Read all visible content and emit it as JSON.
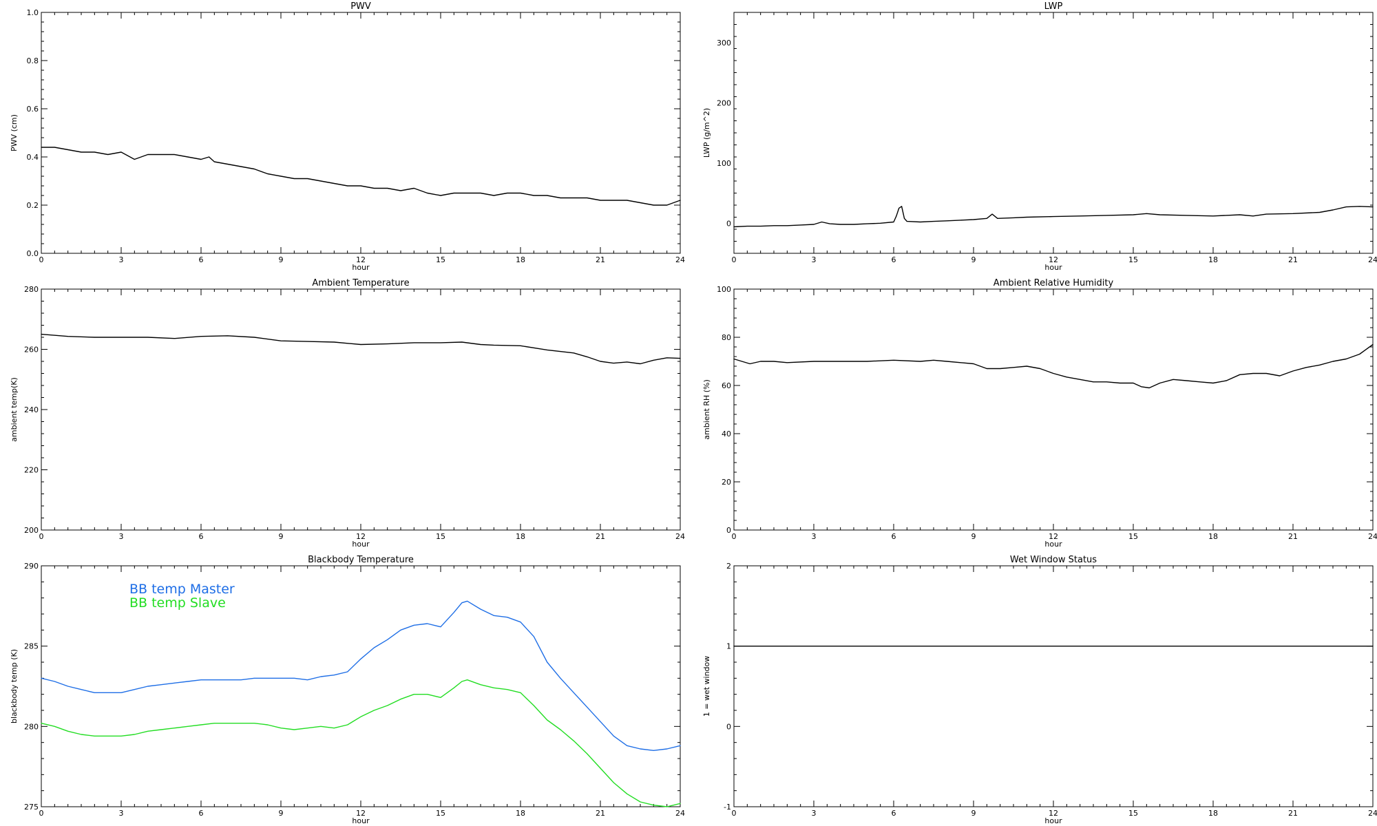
{
  "chart_data": [
    {
      "id": "pwv",
      "type": "line",
      "title": "PWV",
      "xlabel": "hour",
      "ylabel": "PWV (cm)",
      "xlim": [
        0,
        24
      ],
      "ylim": [
        0.0,
        1.0
      ],
      "xticks": [
        0,
        3,
        6,
        9,
        12,
        15,
        18,
        21,
        24
      ],
      "yticks": [
        0.0,
        0.2,
        0.4,
        0.6,
        0.8,
        1.0
      ],
      "ytick_labels": [
        "0.0",
        "0.2",
        "0.4",
        "0.6",
        "0.8",
        "1.0"
      ],
      "series": [
        {
          "color": "#000000",
          "x": [
            0,
            0.5,
            1,
            1.5,
            2,
            2.5,
            3,
            3.5,
            4,
            4.5,
            5,
            5.5,
            6,
            6.3,
            6.5,
            7,
            7.5,
            8,
            8.5,
            9,
            9.5,
            10,
            10.5,
            11,
            11.5,
            12,
            12.5,
            13,
            13.5,
            14,
            14.5,
            15,
            15.5,
            16,
            16.5,
            17,
            17.5,
            18,
            18.5,
            19,
            19.5,
            20,
            20.5,
            21,
            21.5,
            22,
            22.5,
            23,
            23.5,
            24
          ],
          "y": [
            0.44,
            0.44,
            0.43,
            0.42,
            0.42,
            0.41,
            0.42,
            0.39,
            0.41,
            0.41,
            0.41,
            0.4,
            0.39,
            0.4,
            0.38,
            0.37,
            0.36,
            0.35,
            0.33,
            0.32,
            0.31,
            0.31,
            0.3,
            0.29,
            0.28,
            0.28,
            0.27,
            0.27,
            0.26,
            0.27,
            0.25,
            0.24,
            0.25,
            0.25,
            0.25,
            0.24,
            0.25,
            0.25,
            0.24,
            0.24,
            0.23,
            0.23,
            0.23,
            0.22,
            0.22,
            0.22,
            0.21,
            0.2,
            0.2,
            0.22
          ]
        }
      ]
    },
    {
      "id": "lwp",
      "type": "line",
      "title": "LWP",
      "xlabel": "hour",
      "ylabel": "LWP (g/m^2)",
      "xlim": [
        0,
        24
      ],
      "ylim": [
        -50,
        350
      ],
      "xticks": [
        0,
        3,
        6,
        9,
        12,
        15,
        18,
        21,
        24
      ],
      "yticks": [
        0,
        100,
        200,
        300
      ],
      "ytick_labels": [
        "0",
        "100",
        "200",
        "300"
      ],
      "series": [
        {
          "color": "#000000",
          "x": [
            0,
            0.5,
            1,
            1.5,
            2,
            2.5,
            3,
            3.3,
            3.6,
            4,
            4.5,
            5,
            5.5,
            6,
            6.1,
            6.2,
            6.3,
            6.4,
            6.5,
            7,
            7.5,
            8,
            8.5,
            9,
            9.5,
            9.7,
            9.9,
            10.5,
            11,
            12,
            13,
            14,
            15,
            15.5,
            16,
            17,
            18,
            19,
            19.5,
            20,
            21,
            22,
            22.5,
            23,
            23.5,
            24
          ],
          "y": [
            -6,
            -5,
            -5,
            -4,
            -4,
            -3,
            -2,
            2,
            -1,
            -2,
            -2,
            -1,
            0,
            2,
            12,
            25,
            28,
            8,
            3,
            2,
            3,
            4,
            5,
            6,
            8,
            15,
            8,
            9,
            10,
            11,
            12,
            13,
            14,
            16,
            14,
            13,
            12,
            14,
            12,
            15,
            16,
            18,
            22,
            27,
            28,
            27
          ]
        }
      ]
    },
    {
      "id": "ambient-temp",
      "type": "line",
      "title": "Ambient Temperature",
      "xlabel": "hour",
      "ylabel": "ambient temp(K)",
      "xlim": [
        0,
        24
      ],
      "ylim": [
        200,
        280
      ],
      "xticks": [
        0,
        3,
        6,
        9,
        12,
        15,
        18,
        21,
        24
      ],
      "yticks": [
        200,
        220,
        240,
        260,
        280
      ],
      "ytick_labels": [
        "200",
        "220",
        "240",
        "260",
        "280"
      ],
      "series": [
        {
          "color": "#000000",
          "x": [
            0,
            1,
            2,
            3,
            4,
            5,
            6,
            7,
            8,
            9,
            10,
            11,
            12,
            13,
            14,
            15,
            15.8,
            16.5,
            17,
            18,
            19,
            20,
            20.5,
            21,
            21.5,
            22,
            22.5,
            23,
            23.5,
            24
          ],
          "y": [
            265,
            264.3,
            264.0,
            264.0,
            264.0,
            263.6,
            264.3,
            264.5,
            264.0,
            262.8,
            262.6,
            262.4,
            261.6,
            261.8,
            262.2,
            262.2,
            262.4,
            261.6,
            261.4,
            261.2,
            259.8,
            258.8,
            257.5,
            256.0,
            255.4,
            255.8,
            255.2,
            256.4,
            257.2,
            257.0
          ]
        }
      ]
    },
    {
      "id": "ambient-rh",
      "type": "line",
      "title": "Ambient Relative Humidity",
      "xlabel": "hour",
      "ylabel": "ambient RH (%)",
      "xlim": [
        0,
        24
      ],
      "ylim": [
        0,
        100
      ],
      "xticks": [
        0,
        3,
        6,
        9,
        12,
        15,
        18,
        21,
        24
      ],
      "yticks": [
        0,
        20,
        40,
        60,
        80,
        100
      ],
      "ytick_labels": [
        "0",
        "20",
        "40",
        "60",
        "80",
        "100"
      ],
      "series": [
        {
          "color": "#000000",
          "x": [
            0,
            0.3,
            0.6,
            1,
            1.5,
            2,
            3,
            4,
            5,
            6,
            7,
            7.5,
            8,
            9,
            9.5,
            10,
            10.5,
            11,
            11.5,
            12,
            12.5,
            13,
            13.5,
            14,
            14.5,
            15,
            15.3,
            15.6,
            16,
            16.5,
            17,
            17.5,
            18,
            18.5,
            19,
            19.5,
            20,
            20.5,
            21,
            21.5,
            22,
            22.5,
            23,
            23.5,
            24
          ],
          "y": [
            71,
            70,
            69,
            70,
            70,
            69.5,
            70,
            70,
            70,
            70.5,
            70,
            70.5,
            70,
            69,
            67,
            67,
            67.5,
            68,
            67,
            65,
            63.5,
            62.5,
            61.5,
            61.5,
            61,
            61,
            59.5,
            59,
            61,
            62.5,
            62,
            61.5,
            61,
            62,
            64.5,
            65,
            65,
            64,
            66,
            67.5,
            68.5,
            70,
            71,
            73,
            77
          ]
        }
      ]
    },
    {
      "id": "blackbody-temp",
      "type": "line",
      "title": "Blackbody Temperature",
      "xlabel": "hour",
      "ylabel": "blackbody temp (K)",
      "xlim": [
        0,
        24
      ],
      "ylim": [
        275,
        290
      ],
      "xticks": [
        0,
        3,
        6,
        9,
        12,
        15,
        18,
        21,
        24
      ],
      "yticks": [
        275,
        280,
        285,
        290
      ],
      "ytick_labels": [
        "275",
        "280",
        "285",
        "290"
      ],
      "legend_position": "top-left",
      "series": [
        {
          "name": "BB temp Master",
          "color": "#1e6ee6",
          "x": [
            0,
            0.5,
            1,
            1.5,
            2,
            2.5,
            3,
            3.5,
            4,
            4.5,
            5,
            5.5,
            6,
            6.5,
            7,
            7.5,
            8,
            8.5,
            9,
            9.5,
            10,
            10.5,
            11,
            11.5,
            12,
            12.5,
            13,
            13.5,
            14,
            14.5,
            15,
            15.5,
            15.8,
            16,
            16.5,
            17,
            17.5,
            18,
            18.5,
            19,
            19.5,
            20,
            20.5,
            21,
            21.5,
            22,
            22.5,
            23,
            23.5,
            24
          ],
          "y": [
            283.0,
            282.8,
            282.5,
            282.3,
            282.1,
            282.1,
            282.1,
            282.3,
            282.5,
            282.6,
            282.7,
            282.8,
            282.9,
            282.9,
            282.9,
            282.9,
            283.0,
            283.0,
            283.0,
            283.0,
            282.9,
            283.1,
            283.2,
            283.4,
            284.2,
            284.9,
            285.4,
            286.0,
            286.3,
            286.4,
            286.2,
            287.1,
            287.7,
            287.8,
            287.3,
            286.9,
            286.8,
            286.5,
            285.6,
            284.0,
            283.0,
            282.1,
            281.2,
            280.3,
            279.4,
            278.8,
            278.6,
            278.5,
            278.6,
            278.8
          ]
        },
        {
          "name": "BB temp Slave",
          "color": "#22dd22",
          "x": [
            0,
            0.5,
            1,
            1.5,
            2,
            2.5,
            3,
            3.5,
            4,
            4.5,
            5,
            5.5,
            6,
            6.5,
            7,
            7.5,
            8,
            8.5,
            9,
            9.5,
            10,
            10.5,
            11,
            11.5,
            12,
            12.5,
            13,
            13.5,
            14,
            14.5,
            15,
            15.5,
            15.8,
            16,
            16.5,
            17,
            17.5,
            18,
            18.5,
            19,
            19.5,
            20,
            20.5,
            21,
            21.5,
            22,
            22.5,
            23,
            23.5,
            24
          ],
          "y": [
            280.2,
            280.0,
            279.7,
            279.5,
            279.4,
            279.4,
            279.4,
            279.5,
            279.7,
            279.8,
            279.9,
            280.0,
            280.1,
            280.2,
            280.2,
            280.2,
            280.2,
            280.1,
            279.9,
            279.8,
            279.9,
            280.0,
            279.9,
            280.1,
            280.6,
            281.0,
            281.3,
            281.7,
            282.0,
            282.0,
            281.8,
            282.4,
            282.8,
            282.9,
            282.6,
            282.4,
            282.3,
            282.1,
            281.3,
            280.4,
            279.8,
            279.1,
            278.3,
            277.4,
            276.5,
            275.8,
            275.3,
            275.1,
            275.0,
            275.2
          ]
        }
      ]
    },
    {
      "id": "wet-window",
      "type": "line",
      "title": "Wet Window Status",
      "xlabel": "hour",
      "ylabel": "1 = wet window",
      "xlim": [
        0,
        24
      ],
      "ylim": [
        -1,
        2
      ],
      "xticks": [
        0,
        3,
        6,
        9,
        12,
        15,
        18,
        21,
        24
      ],
      "yticks": [
        -1,
        0,
        1,
        2
      ],
      "ytick_labels": [
        "-1",
        "0",
        "1",
        "2"
      ],
      "series": [
        {
          "color": "#000000",
          "x": [
            0,
            24
          ],
          "y": [
            1,
            1
          ]
        }
      ]
    }
  ]
}
